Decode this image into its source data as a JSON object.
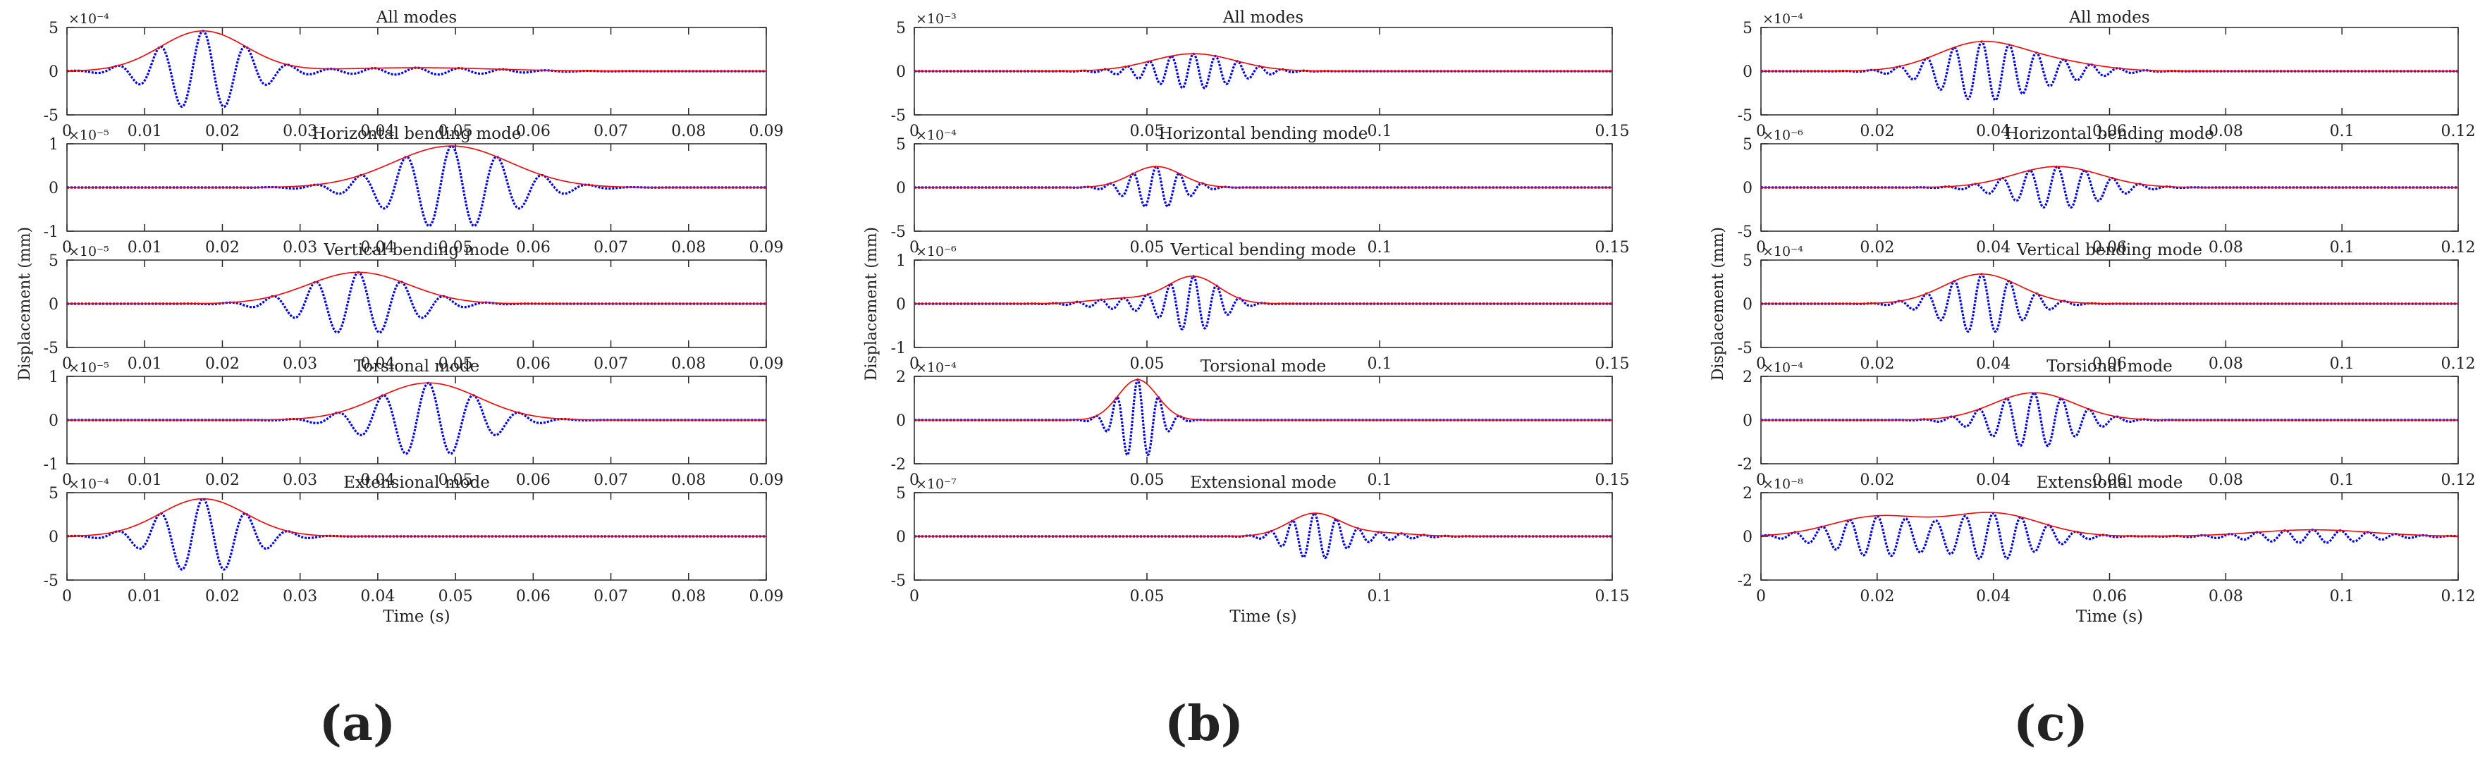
{
  "chart_data": [
    {
      "type": "line",
      "panel_label": "(a)",
      "ylabel": "Displacement (mm)",
      "xlabel": "Time (s)",
      "xlim": [
        0,
        0.09
      ],
      "xticks": [
        0,
        0.01,
        0.02,
        0.03,
        0.04,
        0.05,
        0.06,
        0.07,
        0.08,
        0.09
      ],
      "xtick_labels": [
        "0",
        "0.01",
        "0.02",
        "0.03",
        "0.04",
        "0.05",
        "0.06",
        "0.07",
        "0.08",
        "0.09"
      ],
      "subplots": [
        {
          "title": "All modes",
          "exponent": "×10⁻⁴",
          "ylim": [
            -5,
            5
          ],
          "yticks": [
            -5,
            0,
            5
          ],
          "ytick_labels": [
            "-5",
            "0",
            "5"
          ],
          "series": [
            {
              "name": "signal",
              "color": "#0000ff",
              "freq": 180,
              "packets": [
                {
                  "t0": 0.0175,
                  "w": 0.0055,
                  "a": 4.6
                },
                {
                  "t0": 0.045,
                  "w": 0.01,
                  "a": 0.4
                }
              ]
            },
            {
              "name": "envelope",
              "color": "#ff0000",
              "packets": [
                {
                  "t0": 0.0175,
                  "w": 0.0055,
                  "a": 4.6
                },
                {
                  "t0": 0.045,
                  "w": 0.01,
                  "a": 0.4
                }
              ]
            }
          ]
        },
        {
          "title": "Horizontal bending mode",
          "exponent": "×10⁻⁵",
          "ylim": [
            -1,
            1
          ],
          "yticks": [
            -1,
            0,
            1
          ],
          "ytick_labels": [
            "-1",
            "0",
            "1"
          ],
          "series": [
            {
              "name": "signal",
              "color": "#0000ff",
              "freq": 170,
              "packets": [
                {
                  "t0": 0.0495,
                  "w": 0.0075,
                  "a": 0.95
                }
              ]
            },
            {
              "name": "envelope",
              "color": "#ff0000",
              "packets": [
                {
                  "t0": 0.0495,
                  "w": 0.0075,
                  "a": 0.95
                }
              ]
            }
          ]
        },
        {
          "title": "Vertical bending mode",
          "exponent": "×10⁻⁵",
          "ylim": [
            -5,
            5
          ],
          "yticks": [
            -5,
            0,
            5
          ],
          "ytick_labels": [
            "-5",
            "0",
            "5"
          ],
          "series": [
            {
              "name": "signal",
              "color": "#0000ff",
              "freq": 180,
              "packets": [
                {
                  "t0": 0.0375,
                  "w": 0.0065,
                  "a": 3.6
                }
              ]
            },
            {
              "name": "envelope",
              "color": "#ff0000",
              "packets": [
                {
                  "t0": 0.0375,
                  "w": 0.0065,
                  "a": 3.6
                }
              ]
            }
          ]
        },
        {
          "title": "Torsional mode",
          "exponent": "×10⁻⁵",
          "ylim": [
            -1,
            1
          ],
          "yticks": [
            -1,
            0,
            1
          ],
          "ytick_labels": [
            "-1",
            "0",
            "1"
          ],
          "series": [
            {
              "name": "signal",
              "color": "#0000ff",
              "freq": 170,
              "packets": [
                {
                  "t0": 0.0465,
                  "w": 0.0065,
                  "a": 0.85
                }
              ]
            },
            {
              "name": "envelope",
              "color": "#ff0000",
              "packets": [
                {
                  "t0": 0.0465,
                  "w": 0.0065,
                  "a": 0.85
                }
              ]
            }
          ]
        },
        {
          "title": "Extensional mode",
          "exponent": "×10⁻⁴",
          "ylim": [
            -5,
            5
          ],
          "yticks": [
            -5,
            0,
            5
          ],
          "ytick_labels": [
            "-5",
            "0",
            "5"
          ],
          "series": [
            {
              "name": "signal",
              "color": "#0000ff",
              "freq": 180,
              "packets": [
                {
                  "t0": 0.0175,
                  "w": 0.0055,
                  "a": 4.3
                }
              ]
            },
            {
              "name": "envelope",
              "color": "#ff0000",
              "packets": [
                {
                  "t0": 0.0175,
                  "w": 0.0055,
                  "a": 4.3
                }
              ]
            }
          ]
        }
      ]
    },
    {
      "type": "line",
      "panel_label": "(b)",
      "ylabel": "Displacement (mm)",
      "xlabel": "Time (s)",
      "xlim": [
        0,
        0.15
      ],
      "xticks": [
        0,
        0.05,
        0.1,
        0.15
      ],
      "xtick_labels": [
        "0",
        "0.05",
        "0.1",
        "0.15"
      ],
      "subplots": [
        {
          "title": "All modes",
          "exponent": "×10⁻³",
          "ylim": [
            -5,
            5
          ],
          "yticks": [
            -5,
            0,
            5
          ],
          "ytick_labels": [
            "-5",
            "0",
            "5"
          ],
          "series": [
            {
              "name": "signal",
              "color": "#0000ff",
              "freq": 210,
              "packets": [
                {
                  "t0": 0.06,
                  "w": 0.009,
                  "a": 2.0
                }
              ]
            },
            {
              "name": "envelope",
              "color": "#ff0000",
              "packets": [
                {
                  "t0": 0.06,
                  "w": 0.009,
                  "a": 2.0
                }
              ]
            }
          ]
        },
        {
          "title": "Horizontal bending mode",
          "exponent": "×10⁻⁴",
          "ylim": [
            -5,
            5
          ],
          "yticks": [
            -5,
            0,
            5
          ],
          "ytick_labels": [
            "-5",
            "0",
            "5"
          ],
          "series": [
            {
              "name": "signal",
              "color": "#0000ff",
              "freq": 200,
              "packets": [
                {
                  "t0": 0.052,
                  "w": 0.0055,
                  "a": 2.4
                }
              ]
            },
            {
              "name": "envelope",
              "color": "#ff0000",
              "packets": [
                {
                  "t0": 0.052,
                  "w": 0.0055,
                  "a": 2.4
                }
              ]
            }
          ]
        },
        {
          "title": "Vertical bending mode",
          "exponent": "×10⁻⁶",
          "ylim": [
            -1,
            1
          ],
          "yticks": [
            -1,
            0,
            1
          ],
          "ytick_labels": [
            "-1",
            "0",
            "1"
          ],
          "series": [
            {
              "name": "signal",
              "color": "#0000ff",
              "freq": 200,
              "packets": [
                {
                  "t0": 0.06,
                  "w": 0.0055,
                  "a": 0.62
                },
                {
                  "t0": 0.045,
                  "w": 0.007,
                  "a": 0.12
                }
              ]
            },
            {
              "name": "envelope",
              "color": "#ff0000",
              "packets": [
                {
                  "t0": 0.06,
                  "w": 0.0055,
                  "a": 0.62
                },
                {
                  "t0": 0.045,
                  "w": 0.007,
                  "a": 0.12
                }
              ]
            }
          ]
        },
        {
          "title": "Torsional mode",
          "exponent": "×10⁻⁴",
          "ylim": [
            -2,
            2
          ],
          "yticks": [
            -2,
            0,
            2
          ],
          "ytick_labels": [
            "-2",
            "0",
            "2"
          ],
          "series": [
            {
              "name": "signal",
              "color": "#0000ff",
              "freq": 220,
              "packets": [
                {
                  "t0": 0.048,
                  "w": 0.0042,
                  "a": 1.85
                }
              ]
            },
            {
              "name": "envelope",
              "color": "#ff0000",
              "packets": [
                {
                  "t0": 0.048,
                  "w": 0.0042,
                  "a": 1.85
                }
              ]
            }
          ]
        },
        {
          "title": "Extensional mode",
          "exponent": "×10⁻⁷",
          "ylim": [
            -5,
            5
          ],
          "yticks": [
            -5,
            0,
            5
          ],
          "ytick_labels": [
            "-5",
            "0",
            "5"
          ],
          "series": [
            {
              "name": "signal",
              "color": "#0000ff",
              "freq": 210,
              "packets": [
                {
                  "t0": 0.086,
                  "w": 0.0055,
                  "a": 2.6
                },
                {
                  "t0": 0.1,
                  "w": 0.007,
                  "a": 0.4
                }
              ]
            },
            {
              "name": "envelope",
              "color": "#ff0000",
              "packets": [
                {
                  "t0": 0.086,
                  "w": 0.0055,
                  "a": 2.6
                },
                {
                  "t0": 0.1,
                  "w": 0.007,
                  "a": 0.4
                }
              ]
            }
          ]
        }
      ]
    },
    {
      "type": "line",
      "panel_label": "(c)",
      "ylabel": "Displacement (mm)",
      "xlabel": "Time (s)",
      "xlim": [
        0,
        0.12
      ],
      "xticks": [
        0,
        0.02,
        0.04,
        0.06,
        0.08,
        0.1,
        0.12
      ],
      "xtick_labels": [
        "0",
        "0.02",
        "0.04",
        "0.06",
        "0.08",
        "0.1",
        "0.12"
      ],
      "subplots": [
        {
          "title": "All modes",
          "exponent": "×10⁻⁴",
          "ylim": [
            -5,
            5
          ],
          "yticks": [
            -5,
            0,
            5
          ],
          "ytick_labels": [
            "-5",
            "0",
            "5"
          ],
          "series": [
            {
              "name": "signal",
              "color": "#0000ff",
              "freq": 210,
              "packets": [
                {
                  "t0": 0.038,
                  "w": 0.0075,
                  "a": 3.3
                },
                {
                  "t0": 0.052,
                  "w": 0.007,
                  "a": 0.8
                }
              ]
            },
            {
              "name": "envelope",
              "color": "#ff0000",
              "packets": [
                {
                  "t0": 0.038,
                  "w": 0.0075,
                  "a": 3.3
                },
                {
                  "t0": 0.052,
                  "w": 0.007,
                  "a": 0.8
                }
              ]
            }
          ]
        },
        {
          "title": "Horizontal bending mode",
          "exponent": "×10⁻⁶",
          "ylim": [
            -5,
            5
          ],
          "yticks": [
            -5,
            0,
            5
          ],
          "ytick_labels": [
            "-5",
            "0",
            "5"
          ],
          "series": [
            {
              "name": "signal",
              "color": "#0000ff",
              "freq": 210,
              "packets": [
                {
                  "t0": 0.051,
                  "w": 0.0075,
                  "a": 2.4
                }
              ]
            },
            {
              "name": "envelope",
              "color": "#ff0000",
              "packets": [
                {
                  "t0": 0.051,
                  "w": 0.0075,
                  "a": 2.4
                }
              ]
            }
          ]
        },
        {
          "title": "Vertical bending mode",
          "exponent": "×10⁻⁴",
          "ylim": [
            -5,
            5
          ],
          "yticks": [
            -5,
            0,
            5
          ],
          "ytick_labels": [
            "-5",
            "0",
            "5"
          ],
          "series": [
            {
              "name": "signal",
              "color": "#0000ff",
              "freq": 210,
              "packets": [
                {
                  "t0": 0.038,
                  "w": 0.0065,
                  "a": 3.4
                }
              ]
            },
            {
              "name": "envelope",
              "color": "#ff0000",
              "packets": [
                {
                  "t0": 0.038,
                  "w": 0.0065,
                  "a": 3.4
                }
              ]
            }
          ]
        },
        {
          "title": "Torsional mode",
          "exponent": "×10⁻⁴",
          "ylim": [
            -2,
            2
          ],
          "yticks": [
            -2,
            0,
            2
          ],
          "ytick_labels": [
            "-2",
            "0",
            "2"
          ],
          "series": [
            {
              "name": "signal",
              "color": "#0000ff",
              "freq": 210,
              "packets": [
                {
                  "t0": 0.047,
                  "w": 0.007,
                  "a": 1.25
                }
              ]
            },
            {
              "name": "envelope",
              "color": "#ff0000",
              "packets": [
                {
                  "t0": 0.047,
                  "w": 0.007,
                  "a": 1.25
                }
              ]
            }
          ]
        },
        {
          "title": "Extensional mode",
          "exponent": "×10⁻⁸",
          "ylim": [
            -2,
            2
          ],
          "yticks": [
            -2,
            0,
            2
          ],
          "ytick_labels": [
            "-2",
            "0",
            "2"
          ],
          "series": [
            {
              "name": "signal",
              "color": "#0000ff",
              "freq": 210,
              "packets": [
                {
                  "t0": 0.02,
                  "w": 0.008,
                  "a": 0.9
                },
                {
                  "t0": 0.04,
                  "w": 0.008,
                  "a": 1.05
                },
                {
                  "t0": 0.095,
                  "w": 0.01,
                  "a": 0.3
                }
              ]
            },
            {
              "name": "envelope",
              "color": "#ff0000",
              "packets": [
                {
                  "t0": 0.02,
                  "w": 0.008,
                  "a": 0.9
                },
                {
                  "t0": 0.04,
                  "w": 0.008,
                  "a": 1.05
                },
                {
                  "t0": 0.095,
                  "w": 0.01,
                  "a": 0.3
                }
              ]
            }
          ]
        }
      ]
    }
  ]
}
